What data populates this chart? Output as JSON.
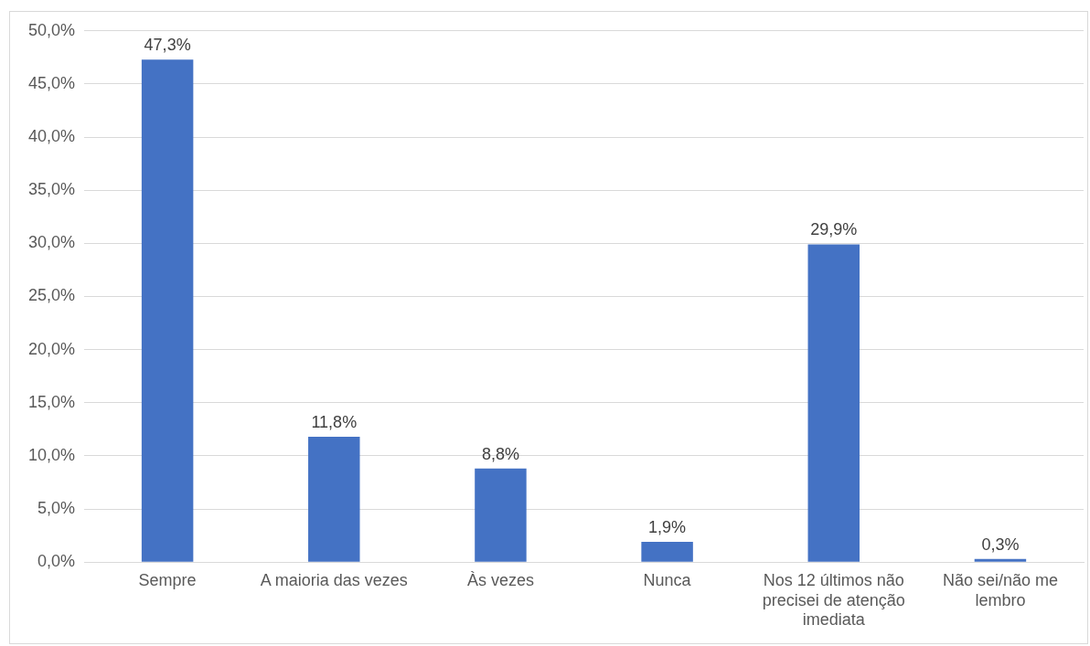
{
  "chart_data": {
    "type": "bar",
    "categories": [
      "Sempre",
      "A maioria das vezes",
      "Às vezes",
      "Nunca",
      "Nos 12 últimos não precisei de atenção imediata",
      "Não sei/não me lembro"
    ],
    "values": [
      47.3,
      11.8,
      8.8,
      1.9,
      29.9,
      0.3
    ],
    "value_labels": [
      "47,3%",
      "11,8%",
      "8,8%",
      "1,9%",
      "29,9%",
      "0,3%"
    ],
    "color": "#4472c4",
    "ylim": [
      0,
      50
    ],
    "yticks": [
      {
        "value": 0,
        "label": "0,0%"
      },
      {
        "value": 5,
        "label": "5,0%"
      },
      {
        "value": 10,
        "label": "10,0%"
      },
      {
        "value": 15,
        "label": "15,0%"
      },
      {
        "value": 20,
        "label": "20,0%"
      },
      {
        "value": 25,
        "label": "25,0%"
      },
      {
        "value": 30,
        "label": "30,0%"
      },
      {
        "value": 35,
        "label": "35,0%"
      },
      {
        "value": 40,
        "label": "40,0%"
      },
      {
        "value": 45,
        "label": "45,0%"
      },
      {
        "value": 50,
        "label": "50,0%"
      }
    ],
    "grid": "y",
    "legend": false
  }
}
